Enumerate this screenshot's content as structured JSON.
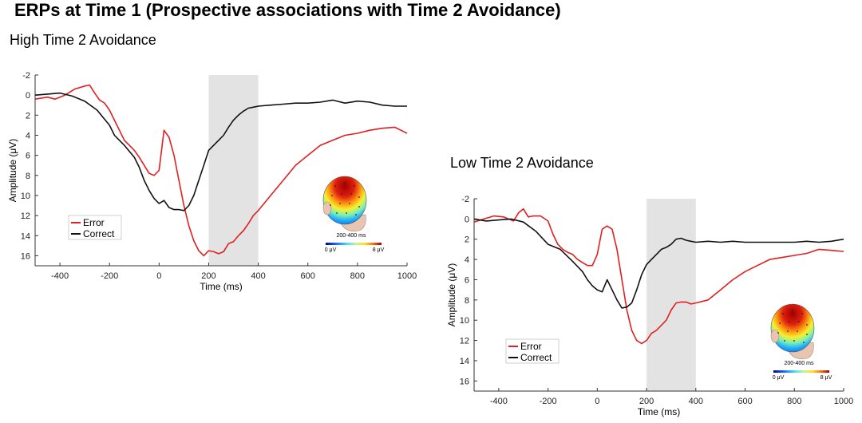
{
  "title": "ERPs at Time 1 (Prospective associations with Time 2 Avoidance)",
  "colors": {
    "error": "#e02020",
    "correct": "#111111",
    "shade": "#e3e3e3"
  },
  "chart_data": [
    {
      "type": "line",
      "title": "High Time 2 Avoidance",
      "xlabel": "Time (ms)",
      "ylabel": "Amplitude (μV)",
      "xlim": [
        -500,
        1000
      ],
      "ylim": [
        -2,
        17
      ],
      "y_reversed": true,
      "xticks": [
        "-400",
        "-200",
        "0",
        "200",
        "400",
        "600",
        "800",
        "1000"
      ],
      "yticks": [
        "-2",
        "0",
        "2",
        "4",
        "6",
        "8",
        "10",
        "12",
        "14",
        "16"
      ],
      "shaded_window": [
        200,
        400
      ],
      "legend": [
        "Error",
        "Correct"
      ],
      "legend_position": "bottom-left",
      "topomap": {
        "label": "200-400 ms",
        "min_label": "0 μV",
        "max_label": "8 μV"
      },
      "series": [
        {
          "name": "Error",
          "x": [
            -500,
            -450,
            -420,
            -380,
            -340,
            -300,
            -280,
            -260,
            -240,
            -220,
            -200,
            -180,
            -160,
            -140,
            -120,
            -100,
            -80,
            -60,
            -40,
            -20,
            0,
            20,
            40,
            60,
            80,
            100,
            120,
            140,
            160,
            180,
            200,
            220,
            240,
            260,
            280,
            300,
            320,
            340,
            360,
            380,
            400,
            450,
            500,
            550,
            600,
            650,
            700,
            750,
            800,
            850,
            900,
            950,
            1000
          ],
          "y": [
            0.4,
            0.2,
            0.4,
            0.0,
            -0.6,
            -0.9,
            -1.0,
            -0.2,
            0.5,
            0.8,
            1.5,
            2.5,
            3.5,
            4.5,
            5.0,
            5.5,
            6.2,
            7.0,
            7.8,
            8.0,
            7.5,
            3.5,
            4.2,
            6.0,
            8.5,
            11.0,
            13.0,
            14.5,
            15.5,
            16.0,
            15.5,
            15.6,
            15.8,
            15.6,
            14.8,
            14.6,
            14.0,
            13.5,
            12.8,
            12.0,
            11.5,
            10.0,
            8.5,
            7.0,
            6.0,
            5.0,
            4.5,
            4.0,
            3.8,
            3.5,
            3.3,
            3.2,
            3.8
          ]
        },
        {
          "name": "Correct",
          "x": [
            -500,
            -450,
            -400,
            -350,
            -300,
            -250,
            -200,
            -180,
            -160,
            -140,
            -120,
            -100,
            -80,
            -60,
            -40,
            -20,
            0,
            20,
            40,
            60,
            80,
            100,
            120,
            140,
            160,
            180,
            200,
            220,
            240,
            260,
            280,
            300,
            320,
            340,
            360,
            380,
            400,
            450,
            500,
            550,
            600,
            650,
            700,
            750,
            800,
            850,
            900,
            950,
            1000
          ],
          "y": [
            0.0,
            -0.1,
            -0.2,
            0.1,
            0.6,
            1.5,
            3.0,
            4.0,
            4.5,
            5.0,
            5.6,
            6.2,
            7.2,
            8.5,
            9.5,
            10.3,
            10.8,
            10.5,
            11.2,
            11.4,
            11.4,
            11.5,
            11.0,
            10.0,
            8.5,
            7.0,
            5.5,
            5.0,
            4.5,
            4.0,
            3.2,
            2.5,
            2.0,
            1.6,
            1.3,
            1.2,
            1.1,
            1.0,
            0.9,
            0.8,
            0.8,
            0.7,
            0.5,
            0.8,
            0.6,
            0.7,
            1.0,
            1.1,
            1.1
          ]
        }
      ]
    },
    {
      "type": "line",
      "title": "Low Time 2 Avoidance",
      "xlabel": "Time (ms)",
      "ylabel": "Amplitude (μV)",
      "xlim": [
        -500,
        1000
      ],
      "ylim": [
        -2,
        17
      ],
      "y_reversed": true,
      "xticks": [
        "-400",
        "-200",
        "0",
        "200",
        "400",
        "600",
        "800",
        "1000"
      ],
      "yticks": [
        "-2",
        "0",
        "2",
        "4",
        "6",
        "8",
        "10",
        "12",
        "14",
        "16"
      ],
      "shaded_window": [
        200,
        400
      ],
      "legend": [
        "Error",
        "Correct"
      ],
      "legend_position": "bottom-left",
      "topomap": {
        "label": "200-400 ms",
        "min_label": "0 μV",
        "max_label": "8 μV"
      },
      "series": [
        {
          "name": "Error",
          "x": [
            -500,
            -460,
            -420,
            -380,
            -340,
            -320,
            -300,
            -280,
            -260,
            -230,
            -200,
            -180,
            -160,
            -140,
            -120,
            -100,
            -80,
            -60,
            -40,
            -20,
            0,
            20,
            40,
            60,
            80,
            100,
            120,
            140,
            160,
            180,
            200,
            220,
            240,
            260,
            280,
            300,
            320,
            340,
            360,
            380,
            400,
            450,
            500,
            550,
            600,
            650,
            700,
            750,
            800,
            850,
            900,
            950,
            1000
          ],
          "y": [
            0.3,
            0.0,
            -0.3,
            -0.2,
            0.2,
            -0.6,
            -1.0,
            -0.2,
            -0.3,
            -0.3,
            0.2,
            1.5,
            2.5,
            3.0,
            3.3,
            3.5,
            4.0,
            4.3,
            4.6,
            4.6,
            3.5,
            1.0,
            0.7,
            1.0,
            3.0,
            6.0,
            9.0,
            11.0,
            12.0,
            12.3,
            12.0,
            11.3,
            11.0,
            10.5,
            10.0,
            9.0,
            8.3,
            8.2,
            8.2,
            8.4,
            8.3,
            8.0,
            7.0,
            6.0,
            5.2,
            4.6,
            4.0,
            3.8,
            3.6,
            3.4,
            3.0,
            3.1,
            3.2
          ]
        },
        {
          "name": "Correct",
          "x": [
            -500,
            -450,
            -400,
            -350,
            -300,
            -250,
            -200,
            -150,
            -100,
            -60,
            -40,
            -20,
            0,
            20,
            40,
            60,
            80,
            100,
            120,
            140,
            160,
            180,
            200,
            220,
            240,
            260,
            280,
            300,
            320,
            340,
            360,
            380,
            400,
            450,
            500,
            550,
            600,
            650,
            700,
            750,
            800,
            850,
            900,
            950,
            1000
          ],
          "y": [
            0.0,
            0.2,
            0.1,
            0.0,
            0.3,
            1.2,
            2.5,
            3.0,
            4.2,
            5.2,
            6.0,
            6.6,
            7.0,
            7.2,
            6.0,
            7.0,
            8.0,
            8.8,
            8.7,
            8.3,
            7.0,
            5.5,
            4.5,
            4.0,
            3.5,
            3.0,
            2.8,
            2.5,
            2.0,
            1.9,
            2.1,
            2.2,
            2.3,
            2.2,
            2.3,
            2.2,
            2.3,
            2.3,
            2.3,
            2.3,
            2.3,
            2.2,
            2.3,
            2.2,
            2.0
          ]
        }
      ]
    }
  ]
}
